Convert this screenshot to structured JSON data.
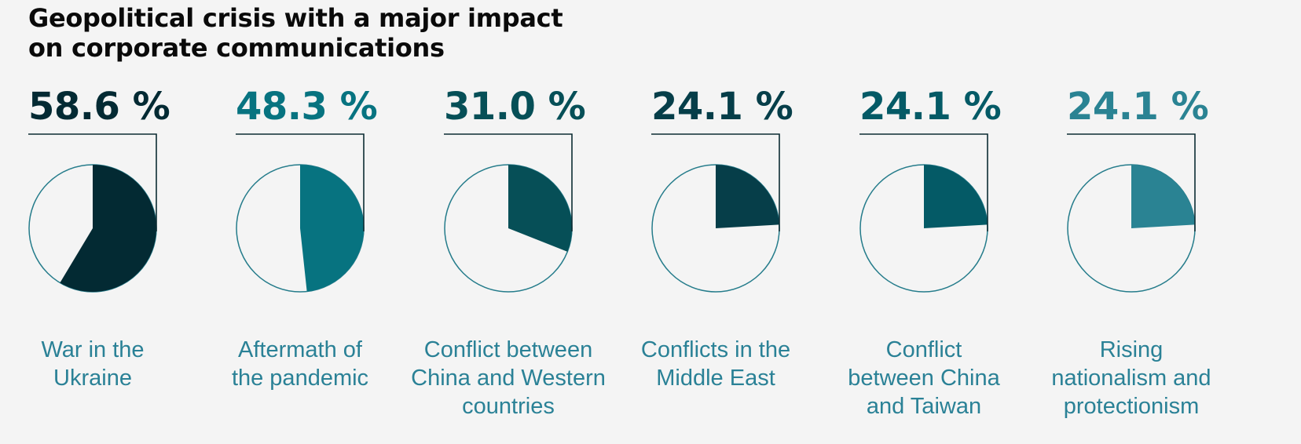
{
  "title_lines": [
    "Geopolitical crisis with a major impact",
    "on corporate communications"
  ],
  "chart_data": {
    "type": "pie",
    "title": "Geopolitical crisis with a major impact on corporate communications",
    "unit": "%",
    "categories": [
      "War in the Ukraine",
      "Aftermath of the pandemic",
      "Conflict between China and Western countries",
      "Conflicts in the Middle East",
      "Conflict between China and Taiwan",
      "Rising nationalism and protectionism"
    ],
    "values": [
      58.6,
      48.3,
      31.0,
      24.1,
      24.1,
      24.1
    ],
    "value_labels": [
      "58.6 %",
      "48.3 %",
      "31.0 %",
      "24.1 %",
      "24.1 %",
      "24.1 %"
    ],
    "label_lines": [
      [
        "War in the",
        "Ukraine"
      ],
      [
        "Aftermath of",
        "the pandemic"
      ],
      [
        "Conflict between",
        "China and Western",
        "countries"
      ],
      [
        "Conflicts in the",
        "Middle East"
      ],
      [
        "Conflict",
        "between China",
        "and Taiwan"
      ],
      [
        "Rising",
        "nationalism and",
        "protectionism"
      ]
    ],
    "colors": [
      "#032a33",
      "#077380",
      "#064f57",
      "#063e49",
      "#045a66",
      "#2a8393"
    ],
    "outline_color": "#257c8b",
    "label_color": "#2a8196",
    "bracket_color": "#0c2c33"
  }
}
